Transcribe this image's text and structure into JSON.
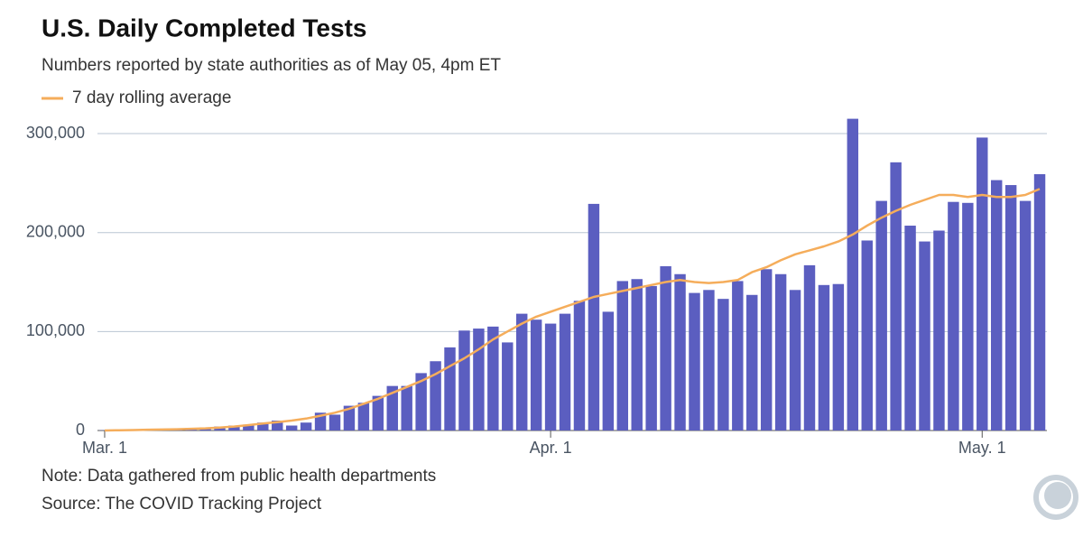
{
  "chart_data": {
    "type": "bar",
    "title": "U.S. Daily Completed Tests",
    "subtitle": "Numbers reported by state authorities as of May 05, 4pm ET",
    "note": "Note: Data gathered from public health departments",
    "source": "Source: The COVID Tracking Project",
    "categories": [
      "Mar. 1",
      null,
      null,
      null,
      null,
      null,
      null,
      null,
      null,
      null,
      null,
      null,
      null,
      null,
      null,
      null,
      null,
      null,
      null,
      null,
      null,
      null,
      null,
      null,
      null,
      null,
      null,
      null,
      null,
      null,
      null,
      "Apr. 1",
      null,
      null,
      null,
      null,
      null,
      null,
      null,
      null,
      null,
      null,
      null,
      null,
      null,
      null,
      null,
      null,
      null,
      null,
      null,
      null,
      null,
      null,
      null,
      null,
      null,
      null,
      null,
      null,
      null,
      "May. 1",
      null,
      null,
      null,
      null
    ],
    "series": [
      {
        "color": "#5b5ec0",
        "values": [
          200,
          500,
          800,
          1000,
          1500,
          2000,
          2500,
          3000,
          4000,
          5000,
          6000,
          8000,
          10000,
          5000,
          8000,
          18000,
          16000,
          25000,
          28000,
          35000,
          45000,
          45000,
          58000,
          70000,
          84000,
          101000,
          103000,
          105000,
          89000,
          118000,
          112000,
          108000,
          118000,
          131000,
          229000,
          120000,
          151000,
          153000,
          146000,
          166000,
          158000,
          139000,
          142000,
          133000,
          151000,
          137000,
          163000,
          158000,
          142000,
          167000,
          147000,
          148000,
          315000,
          192000,
          232000,
          271000,
          207000,
          191000,
          202000,
          231000,
          230000,
          296000,
          253000,
          248000,
          232000,
          259000
        ]
      },
      {
        "name": "7 day rolling average",
        "type": "line",
        "color": "#f5ad5b",
        "values": [
          0,
          300,
          500,
          800,
          1000,
          1300,
          1700,
          2200,
          3000,
          4000,
          5500,
          7000,
          8500,
          10000,
          12000,
          15000,
          18000,
          22000,
          27000,
          32000,
          38000,
          44000,
          50000,
          57000,
          65000,
          73000,
          82000,
          92000,
          100000,
          108000,
          115000,
          120000,
          125000,
          130000,
          135000,
          138000,
          141000,
          144000,
          147000,
          150000,
          152000,
          150000,
          149000,
          150000,
          152000,
          160000,
          165000,
          172000,
          178000,
          182000,
          186000,
          191000,
          198000,
          207000,
          215000,
          222000,
          228000,
          233000,
          238000,
          238000,
          236000,
          238000,
          236000,
          236000,
          238000,
          244000
        ]
      }
    ],
    "ylim": [
      0,
      316000
    ],
    "yticks": [
      0,
      {
        "value": 100000,
        "label": "100,000"
      },
      {
        "value": 200000,
        "label": "200,000"
      },
      {
        "value": 300000,
        "label": "300,000"
      }
    ],
    "grid": true
  }
}
